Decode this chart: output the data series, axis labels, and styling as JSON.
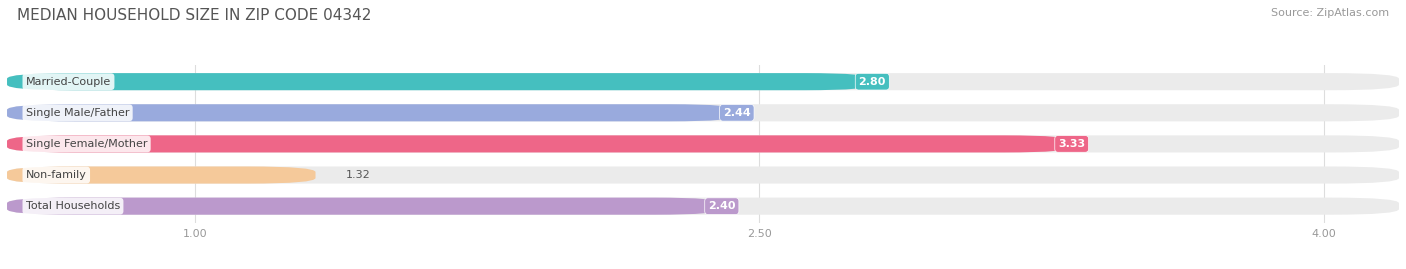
{
  "title": "MEDIAN HOUSEHOLD SIZE IN ZIP CODE 04342",
  "source": "Source: ZipAtlas.com",
  "categories": [
    "Married-Couple",
    "Single Male/Father",
    "Single Female/Mother",
    "Non-family",
    "Total Households"
  ],
  "values": [
    2.8,
    2.44,
    3.33,
    1.32,
    2.4
  ],
  "bar_colors": [
    "#45BFBF",
    "#99AADD",
    "#EE6688",
    "#F5C99A",
    "#BB99CC"
  ],
  "xlim_data": [
    0.5,
    4.2
  ],
  "xmin": 0.5,
  "xmax": 4.2,
  "xticks": [
    1.0,
    2.5,
    4.0
  ],
  "background_color": "#ffffff",
  "bar_bg_color": "#ebebeb",
  "title_fontsize": 11,
  "source_fontsize": 8,
  "label_fontsize": 8,
  "value_fontsize": 8
}
